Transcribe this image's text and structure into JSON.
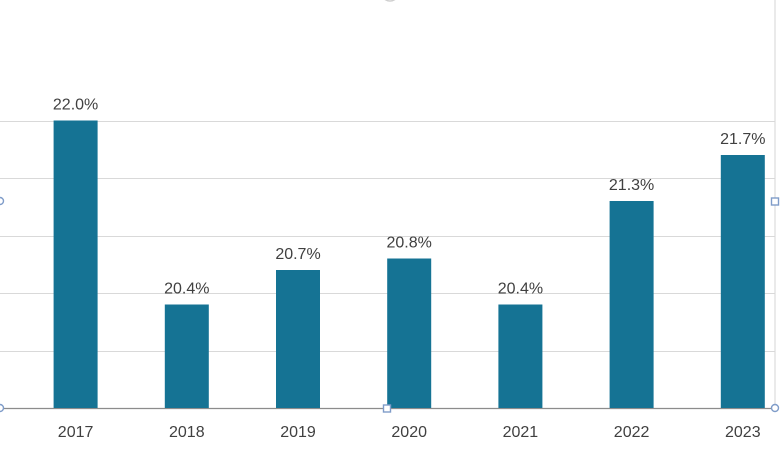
{
  "chart_data": {
    "type": "bar",
    "categories": [
      "2017",
      "2018",
      "2019",
      "2020",
      "2021",
      "2022",
      "2023"
    ],
    "values": [
      22.0,
      20.4,
      20.7,
      20.8,
      20.4,
      21.3,
      21.7
    ],
    "data_labels": [
      "22.0%",
      "20.4%",
      "20.7%",
      "20.8%",
      "20.4%",
      "21.3%",
      "21.7%"
    ],
    "ylim": [
      19.5,
      22.5
    ],
    "grid": true,
    "legend": "none",
    "colors": {
      "bar": "#157394",
      "grid": "#d9d9d9",
      "axis": "#8c8c8c",
      "text": "#404040",
      "handle": "#7f9cc9"
    }
  }
}
